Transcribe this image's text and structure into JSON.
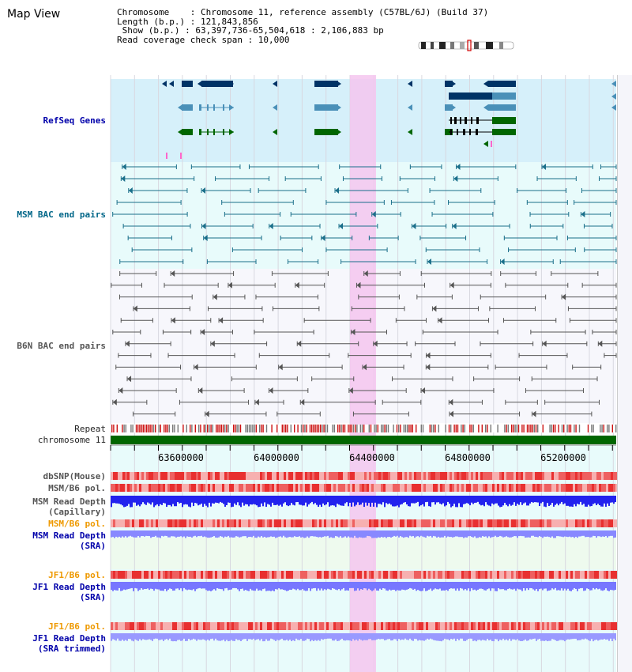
{
  "header": {
    "title": "Map View",
    "lines": [
      "Chromosome    : Chromosome 11, reference assembly (C57BL/6J) (Build 37)",
      "Length (b.p.) : 121,843,856",
      " Show (b.p.) : 63,397,736-65,504,618 : 2,106,883 bp",
      "Read coverage check span : 10,000"
    ]
  },
  "tracks": {
    "refseq": "RefSeq Genes",
    "msm_bac": "MSM BAC end pairs",
    "b6n_bac": "B6N BAC end pairs",
    "repeat": "Repeat",
    "chromosome": "chromosome 11",
    "dbsnp": "dbSNP(Mouse)",
    "msm_b6_pol_1": "MSM/B6 pol.",
    "msm_depth_cap_1": "MSM Read Depth",
    "msm_depth_cap_2": "(Capillary)",
    "msm_b6_pol_2": "MSM/B6 pol.",
    "msm_depth_sra_1": "MSM Read Depth",
    "msm_depth_sra_2": "(SRA)",
    "jf1_b6_pol_1": "JF1/B6 pol.",
    "jf1_depth_sra_1": "JF1 Read Depth",
    "jf1_depth_sra_2": "(SRA)",
    "jf1_b6_pol_2": "JF1/B6 pol.",
    "jf1_depth_trim_1": "JF1 Read Depth",
    "jf1_depth_trim_2": "(SRA trimmed)"
  },
  "axis": {
    "ticks": [
      "63600000",
      "64000000",
      "64400000",
      "64800000",
      "65200000"
    ]
  },
  "colors": {
    "highlight": "#f5c6ee",
    "refseq_bg": "#d6f0fa",
    "track_bg": "#e8fbfb",
    "gene_dark": "#003366",
    "gene_mid": "#4a90b8",
    "gene_green": "#006600",
    "bac_teal": "#1a6f8a",
    "bac_gray": "#555555",
    "chromosome": "#006600",
    "snp": "#e85050",
    "depth": "#2222ee",
    "depth_light": "#7777ff"
  }
}
